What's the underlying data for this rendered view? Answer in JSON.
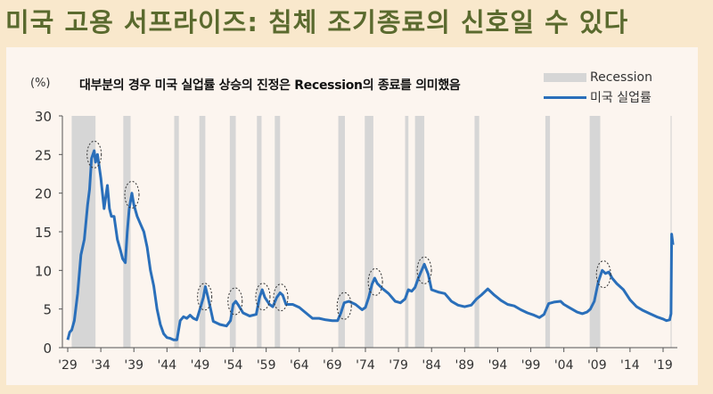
{
  "headline": "미국 고용 서프라이즈: 침체 조기종료의 신호일 수 있다",
  "colors": {
    "page_bg": "#f9e8cc",
    "panel_bg": "#fcf5ef",
    "headline": "#5a6a2e",
    "line": "#2a6fba",
    "recession": "#d6d6d6"
  },
  "legend": {
    "recession_label": "Recession",
    "unemployment_label": "미국 실업률"
  },
  "chart_data": {
    "type": "line",
    "title": "대부분의 경우 미국 실업률 상승의 진정은 Recession의 종료를 의미했음",
    "ylabel": "(%)",
    "xlabel": "",
    "ylim": [
      0,
      30
    ],
    "yticks": [
      0,
      5,
      10,
      15,
      20,
      25,
      30
    ],
    "xlim": [
      1929,
      2020.5
    ],
    "xticks": [
      "'29",
      "'34",
      "'39",
      "'44",
      "'49",
      "'54",
      "'59",
      "'64",
      "'69",
      "'74",
      "'79",
      "'84",
      "'89",
      "'94",
      "'99",
      "'04",
      "'09",
      "'14",
      "'19"
    ],
    "grid": false,
    "legend_position": "top-right",
    "series": [
      {
        "name": "미국 실업률",
        "x": [
          1929.0,
          1929.3,
          1929.6,
          1930.0,
          1930.5,
          1931.0,
          1931.5,
          1932.0,
          1932.3,
          1932.6,
          1933.0,
          1933.2,
          1933.5,
          1934.0,
          1934.5,
          1935.0,
          1935.3,
          1935.6,
          1936.0,
          1936.5,
          1937.0,
          1937.3,
          1937.7,
          1938.0,
          1938.3,
          1938.7,
          1939.0,
          1939.5,
          1940.0,
          1940.5,
          1941.0,
          1941.5,
          1942.0,
          1942.5,
          1943.0,
          1943.5,
          1944.0,
          1944.5,
          1945.0,
          1945.5,
          1946.0,
          1946.5,
          1947.0,
          1947.5,
          1948.0,
          1948.5,
          1949.0,
          1949.5,
          1949.8,
          1950.2,
          1950.6,
          1951.0,
          1952.0,
          1953.0,
          1953.6,
          1954.0,
          1954.4,
          1954.8,
          1955.5,
          1956.5,
          1957.5,
          1958.0,
          1958.4,
          1958.8,
          1959.5,
          1960.0,
          1960.6,
          1961.1,
          1961.5,
          1962.0,
          1963.0,
          1964.0,
          1965.0,
          1966.0,
          1967.0,
          1968.0,
          1969.0,
          1969.8,
          1970.3,
          1970.8,
          1971.5,
          1972.5,
          1973.5,
          1974.0,
          1974.5,
          1975.0,
          1975.4,
          1975.8,
          1976.5,
          1977.5,
          1978.5,
          1979.3,
          1980.0,
          1980.5,
          1981.0,
          1981.5,
          1982.0,
          1982.5,
          1982.9,
          1983.5,
          1984.0,
          1985.0,
          1986.0,
          1987.0,
          1988.0,
          1989.0,
          1990.0,
          1990.8,
          1991.5,
          1992.5,
          1993.5,
          1994.5,
          1995.5,
          1996.5,
          1997.5,
          1998.5,
          1999.5,
          2000.3,
          2001.0,
          2001.7,
          2002.5,
          2003.5,
          2004.0,
          2005.0,
          2006.0,
          2006.8,
          2007.5,
          2008.0,
          2008.6,
          2009.2,
          2009.8,
          2010.3,
          2010.8,
          2011.3,
          2012.0,
          2013.0,
          2014.0,
          2015.0,
          2016.0,
          2017.0,
          2018.0,
          2019.0,
          2019.5,
          2020.0,
          2020.2,
          2020.3,
          2020.5
        ],
        "values": [
          1.0,
          2.0,
          2.3,
          3.5,
          7.0,
          12.0,
          14.0,
          18.5,
          20.5,
          24.5,
          25.5,
          24.0,
          25.0,
          22.0,
          18.0,
          21.0,
          18.0,
          17.0,
          17.0,
          14.0,
          12.5,
          11.5,
          11.0,
          15.0,
          18.0,
          20.0,
          18.5,
          17.0,
          16.0,
          15.0,
          13.0,
          10.0,
          8.0,
          5.0,
          3.0,
          1.8,
          1.3,
          1.2,
          1.0,
          1.0,
          3.5,
          4.0,
          3.8,
          4.2,
          3.8,
          3.6,
          5.0,
          6.5,
          7.9,
          6.5,
          5.0,
          3.4,
          3.0,
          2.8,
          3.5,
          5.6,
          6.0,
          5.5,
          4.5,
          4.1,
          4.3,
          6.5,
          7.5,
          6.5,
          5.6,
          5.3,
          6.5,
          7.1,
          6.8,
          5.6,
          5.6,
          5.2,
          4.5,
          3.8,
          3.8,
          3.6,
          3.5,
          3.5,
          4.5,
          5.8,
          6.0,
          5.6,
          4.9,
          5.2,
          6.5,
          8.2,
          9.0,
          8.3,
          7.7,
          7.0,
          6.0,
          5.8,
          6.3,
          7.5,
          7.3,
          7.8,
          9.0,
          10.0,
          10.8,
          9.5,
          7.5,
          7.2,
          7.0,
          6.0,
          5.5,
          5.3,
          5.5,
          6.3,
          6.8,
          7.6,
          6.8,
          6.1,
          5.6,
          5.4,
          4.9,
          4.5,
          4.2,
          3.9,
          4.3,
          5.7,
          5.9,
          6.0,
          5.6,
          5.1,
          4.6,
          4.4,
          4.6,
          5.0,
          6.0,
          8.5,
          10.0,
          9.6,
          9.8,
          9.0,
          8.3,
          7.5,
          6.2,
          5.3,
          4.8,
          4.4,
          4.0,
          3.7,
          3.5,
          3.6,
          4.4,
          14.7,
          13.3
        ],
        "color": "#2a6fba"
      }
    ],
    "recessions": [
      [
        1929.6,
        1933.2
      ],
      [
        1937.4,
        1938.5
      ],
      [
        1945.1,
        1945.8
      ],
      [
        1948.9,
        1949.8
      ],
      [
        1953.5,
        1954.4
      ],
      [
        1957.6,
        1958.3
      ],
      [
        1960.3,
        1961.1
      ],
      [
        1969.9,
        1970.9
      ],
      [
        1973.9,
        1975.2
      ],
      [
        1980.0,
        1980.5
      ],
      [
        1981.5,
        1982.9
      ],
      [
        1990.5,
        1991.2
      ],
      [
        2001.2,
        2001.9
      ],
      [
        2007.9,
        2009.5
      ]
    ],
    "annotations": [
      {
        "type": "dashed-ellipse",
        "x": 1933.0,
        "y": 25.0
      },
      {
        "type": "dashed-ellipse",
        "x": 1938.7,
        "y": 19.8
      },
      {
        "type": "dashed-ellipse",
        "x": 1949.7,
        "y": 6.6
      },
      {
        "type": "dashed-ellipse",
        "x": 1954.3,
        "y": 6.0
      },
      {
        "type": "dashed-ellipse",
        "x": 1958.5,
        "y": 6.6
      },
      {
        "type": "dashed-ellipse",
        "x": 1961.2,
        "y": 6.5
      },
      {
        "type": "dashed-ellipse",
        "x": 1970.8,
        "y": 5.4
      },
      {
        "type": "dashed-ellipse",
        "x": 1975.5,
        "y": 8.5
      },
      {
        "type": "dashed-ellipse",
        "x": 1982.9,
        "y": 10.0
      },
      {
        "type": "dashed-ellipse",
        "x": 2010.0,
        "y": 9.5
      }
    ]
  }
}
